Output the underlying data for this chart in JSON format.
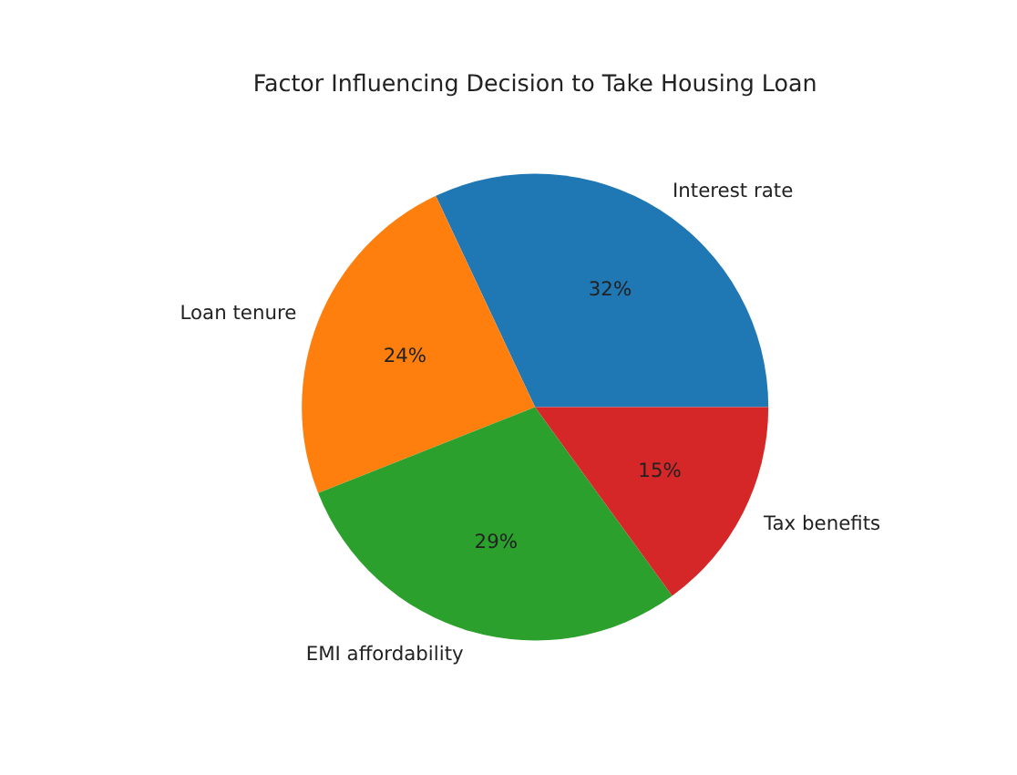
{
  "chart_data": {
    "type": "pie",
    "title": "Factor Influencing Decision to Take Housing Loan",
    "categories": [
      "Interest rate",
      "Loan tenure",
      "EMI affordability",
      "Tax benefits"
    ],
    "values": [
      32,
      24,
      29,
      15
    ],
    "value_labels": [
      "32%",
      "24%",
      "29%",
      "15%"
    ],
    "colors": [
      "#1f77b4",
      "#ff7f0e",
      "#2ca02c",
      "#d62728"
    ]
  }
}
